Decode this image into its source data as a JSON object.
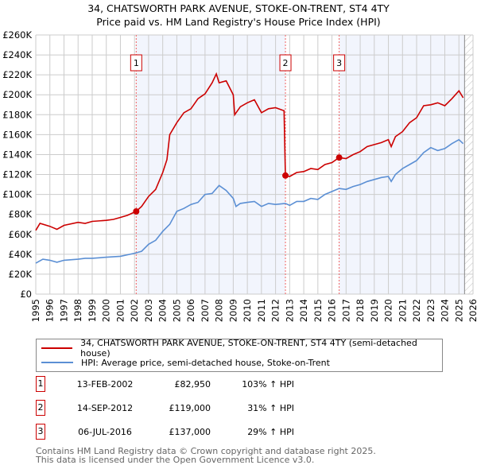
{
  "chart_data": {
    "type": "line",
    "title": "34, CHATSWORTH PARK AVENUE, STOKE-ON-TRENT, ST4 4TY",
    "subtitle": "Price paid vs. HM Land Registry's House Price Index (HPI)",
    "xlabel": "",
    "ylabel": "",
    "xlim": [
      1995,
      2026
    ],
    "ylim": [
      0,
      260000
    ],
    "y_ticks": [
      0,
      20000,
      40000,
      60000,
      80000,
      100000,
      120000,
      140000,
      160000,
      180000,
      200000,
      220000,
      240000,
      260000
    ],
    "y_tick_labels": [
      "£0",
      "£20K",
      "£40K",
      "£60K",
      "£80K",
      "£100K",
      "£120K",
      "£140K",
      "£160K",
      "£180K",
      "£200K",
      "£220K",
      "£240K",
      "£260K"
    ],
    "x_ticks": [
      "1995",
      "1996",
      "1997",
      "1998",
      "1999",
      "2000",
      "2001",
      "2002",
      "2003",
      "2004",
      "2005",
      "2006",
      "2007",
      "2008",
      "2009",
      "2010",
      "2011",
      "2012",
      "2013",
      "2014",
      "2015",
      "2016",
      "2017",
      "2018",
      "2019",
      "2020",
      "2021",
      "2022",
      "2023",
      "2024",
      "2025",
      "2026"
    ],
    "grid": true,
    "forecast_hatch_from": 2025.4,
    "series": [
      {
        "name": "34, CHATSWORTH PARK AVENUE, STOKE-ON-TRENT, ST4 4TY (semi-detached house)",
        "color": "#cc0000",
        "x": [
          1995,
          1995.3,
          1996,
          1996.5,
          1997,
          1998,
          1998.5,
          1999,
          2000,
          2000.5,
          2001,
          2001.5,
          2002.12,
          2002.5,
          2003,
          2003.5,
          2004,
          2004.3,
          2004.5,
          2005,
          2005.5,
          2006,
          2006.5,
          2007,
          2007.5,
          2007.8,
          2008,
          2008.5,
          2009,
          2009.1,
          2009.5,
          2010,
          2010.5,
          2011,
          2011.5,
          2012,
          2012.6,
          2012.7,
          2013,
          2013.5,
          2014,
          2014.5,
          2015,
          2015.5,
          2016,
          2016.5,
          2017,
          2017.5,
          2018,
          2018.5,
          2019,
          2019.5,
          2020,
          2020.2,
          2020.5,
          2021,
          2021.5,
          2022,
          2022.5,
          2023,
          2023.5,
          2024,
          2024.5,
          2025,
          2025.3
        ],
        "y": [
          64,
          71,
          68,
          65,
          69,
          72,
          71,
          73,
          74,
          75,
          77,
          79,
          83,
          88,
          98,
          105,
          122,
          135,
          160,
          172,
          182,
          186,
          196,
          201,
          212,
          221,
          212,
          214,
          200,
          180,
          188,
          192,
          195,
          182,
          186,
          187,
          184,
          119,
          118,
          122,
          123,
          126,
          125,
          130,
          132,
          137,
          136,
          140,
          143,
          148,
          150,
          152,
          155,
          148,
          158,
          163,
          172,
          177,
          189,
          190,
          192,
          189,
          196,
          204,
          197
        ],
        "y_unit": "thousand GBP"
      },
      {
        "name": "HPI: Average price, semi-detached house, Stoke-on-Trent",
        "color": "#5b8fd4",
        "x": [
          1995,
          1995.5,
          1996,
          1996.5,
          1997,
          1998,
          1998.5,
          1999,
          2000,
          2001,
          2002,
          2002.5,
          2003,
          2003.5,
          2004,
          2004.5,
          2005,
          2005.5,
          2006,
          2006.5,
          2007,
          2007.5,
          2008,
          2008.5,
          2009,
          2009.2,
          2009.5,
          2010,
          2010.5,
          2011,
          2011.5,
          2012,
          2012.7,
          2013,
          2013.5,
          2014,
          2014.5,
          2015,
          2015.5,
          2016,
          2016.5,
          2017,
          2017.5,
          2018,
          2018.5,
          2019,
          2019.5,
          2020,
          2020.2,
          2020.5,
          2021,
          2021.5,
          2022,
          2022.5,
          2023,
          2023.5,
          2024,
          2024.5,
          2025,
          2025.3
        ],
        "y": [
          31,
          35,
          34,
          32,
          34,
          35,
          36,
          36,
          37,
          38,
          41,
          43,
          50,
          54,
          63,
          70,
          83,
          86,
          90,
          92,
          100,
          101,
          109,
          104,
          96,
          88,
          91,
          92,
          93,
          88,
          91,
          90,
          91,
          89,
          93,
          93,
          96,
          95,
          100,
          103,
          106,
          105,
          108,
          110,
          113,
          115,
          117,
          118,
          113,
          120,
          126,
          130,
          134,
          142,
          147,
          144,
          146,
          151,
          155,
          151
        ],
        "y_unit": "thousand GBP"
      }
    ],
    "sales": [
      {
        "num": "1",
        "x": 2002.12,
        "value": 82950,
        "date": "13-FEB-2002",
        "price": "£82,950",
        "hpi": "103% ↑ HPI"
      },
      {
        "num": "2",
        "x": 2012.7,
        "value": 119000,
        "date": "14-SEP-2012",
        "price": "£119,000",
        "hpi": "31% ↑ HPI"
      },
      {
        "num": "3",
        "x": 2016.51,
        "value": 137000,
        "date": "06-JUL-2016",
        "price": "£137,000",
        "hpi": "29% ↑ HPI"
      }
    ]
  },
  "legend": {
    "property": "34, CHATSWORTH PARK AVENUE, STOKE-ON-TRENT, ST4 4TY (semi-detached house)",
    "hpi": "HPI: Average price, semi-detached house, Stoke-on-Trent"
  },
  "footer": {
    "line1": "Contains HM Land Registry data © Crown copyright and database right 2025.",
    "line2": "This data is licensed under the Open Government Licence v3.0."
  }
}
